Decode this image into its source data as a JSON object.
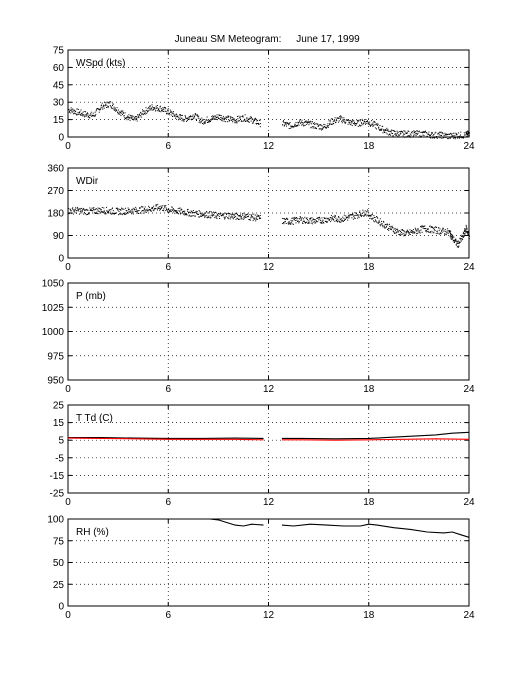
{
  "figure": {
    "title": "Juneau SM Meteogram:",
    "date": "June 17, 1999"
  },
  "x_axis": {
    "ticks": [
      0,
      6,
      12,
      18,
      24
    ],
    "range": [
      0,
      24
    ]
  },
  "chart_data": [
    {
      "type": "scatter",
      "panel_label": "WSpd (kts)",
      "ylim": [
        0,
        75
      ],
      "yticks": [
        0,
        15,
        30,
        45,
        60,
        75
      ],
      "grid": true,
      "segments": [
        {
          "x": [
            0,
            0.5,
            1,
            1.5,
            2,
            2.5,
            3,
            3.5,
            4,
            4.5,
            5,
            5.5,
            6,
            6.5,
            7,
            7.5,
            8,
            8.5,
            9,
            9.5,
            10,
            10.5,
            11,
            11.5
          ],
          "y": [
            24,
            22,
            20,
            19,
            27,
            29,
            23,
            18,
            15,
            22,
            26,
            25,
            22,
            18,
            16,
            19,
            14,
            16,
            18,
            16,
            15,
            17,
            15,
            12
          ]
        },
        {
          "x": [
            12.8,
            13.3,
            13.8,
            14.3,
            14.8,
            15.3,
            15.8,
            16.3,
            16.8,
            17.3,
            17.8,
            18.3,
            18.8,
            19.3,
            19.8,
            20.3,
            20.8,
            21.3,
            21.8,
            22.3,
            22.8,
            23.3,
            23.8,
            24
          ],
          "y": [
            12,
            10,
            13,
            12,
            10,
            9,
            14,
            16,
            13,
            12,
            14,
            11,
            7,
            4,
            3,
            3,
            3,
            3,
            2,
            2,
            1,
            2,
            2,
            4
          ]
        }
      ],
      "color": "#000000"
    },
    {
      "type": "scatter",
      "panel_label": "WDir",
      "ylim": [
        0,
        360
      ],
      "yticks": [
        0,
        90,
        180,
        270,
        360
      ],
      "grid": true,
      "segments": [
        {
          "x": [
            0,
            0.5,
            1,
            1.5,
            2,
            2.5,
            3,
            3.5,
            4,
            4.5,
            5,
            5.5,
            6,
            6.5,
            7,
            7.5,
            8,
            8.5,
            9,
            9.5,
            10,
            10.5,
            11,
            11.5
          ],
          "y": [
            190,
            192,
            188,
            190,
            193,
            190,
            188,
            190,
            192,
            195,
            200,
            205,
            195,
            190,
            185,
            180,
            178,
            175,
            170,
            172,
            168,
            170,
            165,
            160
          ]
        },
        {
          "x": [
            12.8,
            13.3,
            13.8,
            14.3,
            14.8,
            15.3,
            15.8,
            16.3,
            16.8,
            17.3,
            17.8,
            18.3,
            18.8,
            19.3,
            19.8,
            20.3,
            20.8,
            21.3,
            21.8,
            22.3,
            22.8,
            23.0,
            23.3,
            23.6,
            23.8,
            24
          ],
          "y": [
            150,
            148,
            155,
            152,
            150,
            155,
            160,
            158,
            165,
            175,
            185,
            160,
            140,
            120,
            105,
            100,
            110,
            120,
            115,
            110,
            105,
            80,
            55,
            85,
            120,
            90
          ]
        }
      ],
      "color": "#000000"
    },
    {
      "type": "line",
      "panel_label": "P (mb)",
      "ylim": [
        950,
        1050
      ],
      "yticks": [
        950,
        975,
        1000,
        1025,
        1050
      ],
      "grid": true,
      "segments": []
    },
    {
      "type": "line",
      "panel_label": "T Td (C)",
      "ylim": [
        -25,
        25
      ],
      "yticks": [
        -25,
        -15,
        -5,
        5,
        15,
        25
      ],
      "grid": true,
      "series": [
        {
          "color": "#000000",
          "segments": [
            {
              "x": [
                0,
                2,
                4,
                6,
                8,
                10,
                11.7
              ],
              "y": [
                6.5,
                6.5,
                6.2,
                6.0,
                6.0,
                6.2,
                6.0
              ]
            },
            {
              "x": [
                12.8,
                14,
                16,
                18,
                19,
                20,
                21,
                22,
                23,
                24
              ],
              "y": [
                6.0,
                6.0,
                5.8,
                6.0,
                6.5,
                7.0,
                7.5,
                8.0,
                9.0,
                9.5
              ]
            }
          ]
        },
        {
          "color": "#ff0000",
          "segments": [
            {
              "x": [
                0,
                2,
                4,
                6,
                8,
                10,
                11.7
              ],
              "y": [
                6.2,
                6.0,
                5.8,
                5.5,
                5.5,
                5.5,
                5.2
              ]
            },
            {
              "x": [
                12.8,
                14,
                16,
                18,
                20,
                22,
                24
              ],
              "y": [
                5.2,
                5.2,
                5.0,
                5.2,
                5.5,
                5.8,
                5.5
              ]
            }
          ]
        }
      ]
    },
    {
      "type": "line",
      "panel_label": "RH (%)",
      "ylim": [
        0,
        100
      ],
      "yticks": [
        0,
        25,
        50,
        75,
        100
      ],
      "grid": true,
      "series": [
        {
          "color": "#000000",
          "segments": [
            {
              "x": [
                7.9,
                8.5,
                9.0,
                9.5,
                10.0,
                10.5,
                11.0,
                11.7
              ],
              "y": [
                100,
                100,
                99,
                96,
                93,
                92,
                94,
                93
              ]
            },
            {
              "x": [
                12.8,
                13.5,
                14.5,
                15.5,
                16.5,
                17.5,
                18.0,
                18.5,
                19.5,
                20.5,
                21.5,
                22.5,
                23.0,
                23.5,
                24
              ],
              "y": [
                93,
                92,
                94,
                93,
                92,
                92,
                94,
                93,
                90,
                88,
                85,
                84,
                85,
                82,
                79
              ]
            }
          ]
        }
      ]
    }
  ]
}
